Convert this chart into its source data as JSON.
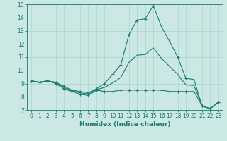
{
  "xlabel": "Humidex (Indice chaleur)",
  "background_color": "#cce8e4",
  "line_color": "#1a7a6e",
  "grid_color": "#aad4cf",
  "xlim": [
    -0.5,
    23.5
  ],
  "ylim": [
    7,
    15
  ],
  "yticks": [
    7,
    8,
    9,
    10,
    11,
    12,
    13,
    14,
    15
  ],
  "xticks": [
    0,
    1,
    2,
    3,
    4,
    5,
    6,
    7,
    8,
    9,
    10,
    11,
    12,
    13,
    14,
    15,
    16,
    17,
    18,
    19,
    20,
    21,
    22,
    23
  ],
  "line1_y": [
    9.2,
    9.1,
    9.2,
    9.0,
    8.6,
    8.4,
    8.2,
    8.1,
    8.5,
    8.4,
    8.4,
    8.5,
    8.5,
    8.5,
    8.5,
    8.5,
    8.5,
    8.4,
    8.4,
    8.4,
    8.4,
    7.3,
    7.1,
    7.6
  ],
  "line2_y": [
    9.2,
    9.1,
    9.2,
    9.1,
    8.8,
    8.5,
    8.4,
    8.3,
    8.6,
    9.0,
    9.7,
    10.4,
    12.7,
    13.8,
    13.9,
    14.9,
    13.3,
    12.2,
    11.0,
    9.4,
    9.3,
    7.3,
    7.1,
    7.6
  ],
  "line3_y": [
    9.2,
    9.1,
    9.2,
    9.05,
    8.7,
    8.45,
    8.3,
    8.2,
    8.55,
    8.7,
    9.05,
    9.45,
    10.6,
    11.15,
    11.2,
    11.7,
    10.9,
    10.3,
    9.7,
    8.9,
    8.85,
    7.3,
    7.1,
    7.6
  ]
}
